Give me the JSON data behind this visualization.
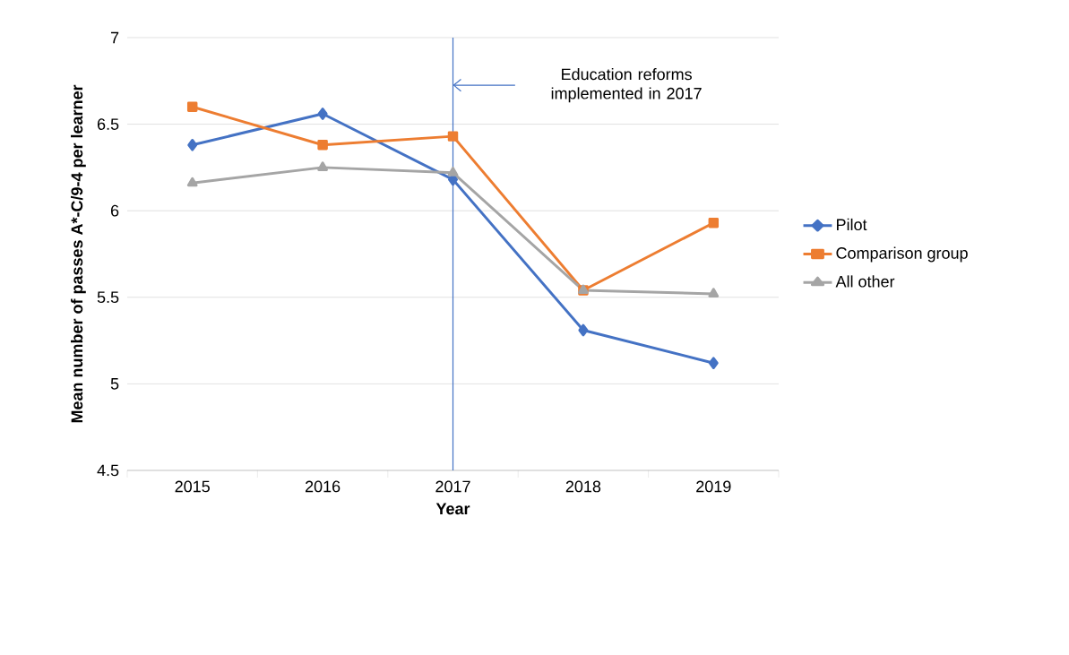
{
  "chart_data": {
    "type": "line",
    "xlabel": "Year",
    "ylabel": "Mean number of passes A*-C/9-4 per learner",
    "categories": [
      "2015",
      "2016",
      "2017",
      "2018",
      "2019"
    ],
    "series": [
      {
        "name": "Pilot",
        "color": "#4472c4",
        "marker": "diamond",
        "values": [
          6.38,
          6.56,
          6.18,
          5.31,
          5.12
        ]
      },
      {
        "name": "Comparison group",
        "color": "#ed7d31",
        "marker": "square",
        "values": [
          6.6,
          6.38,
          6.43,
          5.54,
          5.93
        ]
      },
      {
        "name": "All other",
        "color": "#a5a5a5",
        "marker": "triangle",
        "values": [
          6.16,
          6.25,
          6.22,
          5.54,
          5.52
        ]
      }
    ],
    "ylim": [
      4.5,
      7
    ],
    "yticks": [
      4.5,
      5,
      5.5,
      6,
      6.5,
      7
    ],
    "grid": "y",
    "legend": "right",
    "ref_lines": [
      {
        "axis": "x",
        "value": "2017",
        "color": "#4472c4"
      }
    ],
    "annotations": [
      "Education reforms implemented in 2017"
    ]
  }
}
